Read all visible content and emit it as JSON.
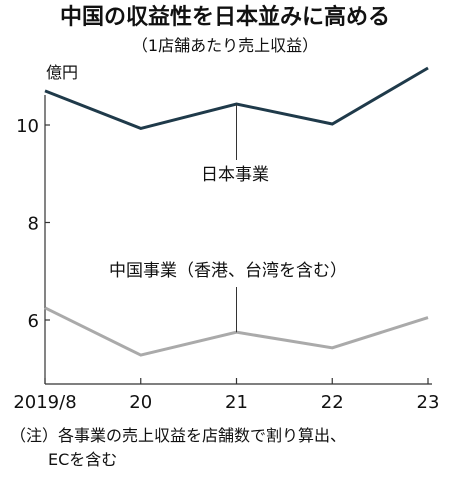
{
  "title": "中国の収益性を日本並みに高める",
  "subtitle": "（1店舗あたり売上収益）",
  "unit_label": "億円",
  "note_line1": "（注）各事業の売上収益を店舗数で割り算出、",
  "note_line2": "ECを含む",
  "colors": {
    "japan": "#1f3a4a",
    "china": "#aaaaaa",
    "axis": "#333333"
  },
  "chart_data": {
    "type": "line",
    "title": "中国の収益性を日本並みに高める",
    "subtitle": "（1店舗あたり売上収益）",
    "ylabel": "億円",
    "xlabel": "",
    "categories": [
      "2019/8",
      "20",
      "21",
      "22",
      "23"
    ],
    "ylim": [
      5.2,
      11.8
    ],
    "yticks": [
      6,
      8,
      10
    ],
    "grid": false,
    "series": [
      {
        "name": "日本事業",
        "values": [
          10.7,
          9.93,
          10.43,
          10.02,
          11.17
        ]
      },
      {
        "name": "中国事業（香港、台湾を含む）",
        "values": [
          6.25,
          5.28,
          5.75,
          5.43,
          6.05
        ]
      }
    ]
  }
}
